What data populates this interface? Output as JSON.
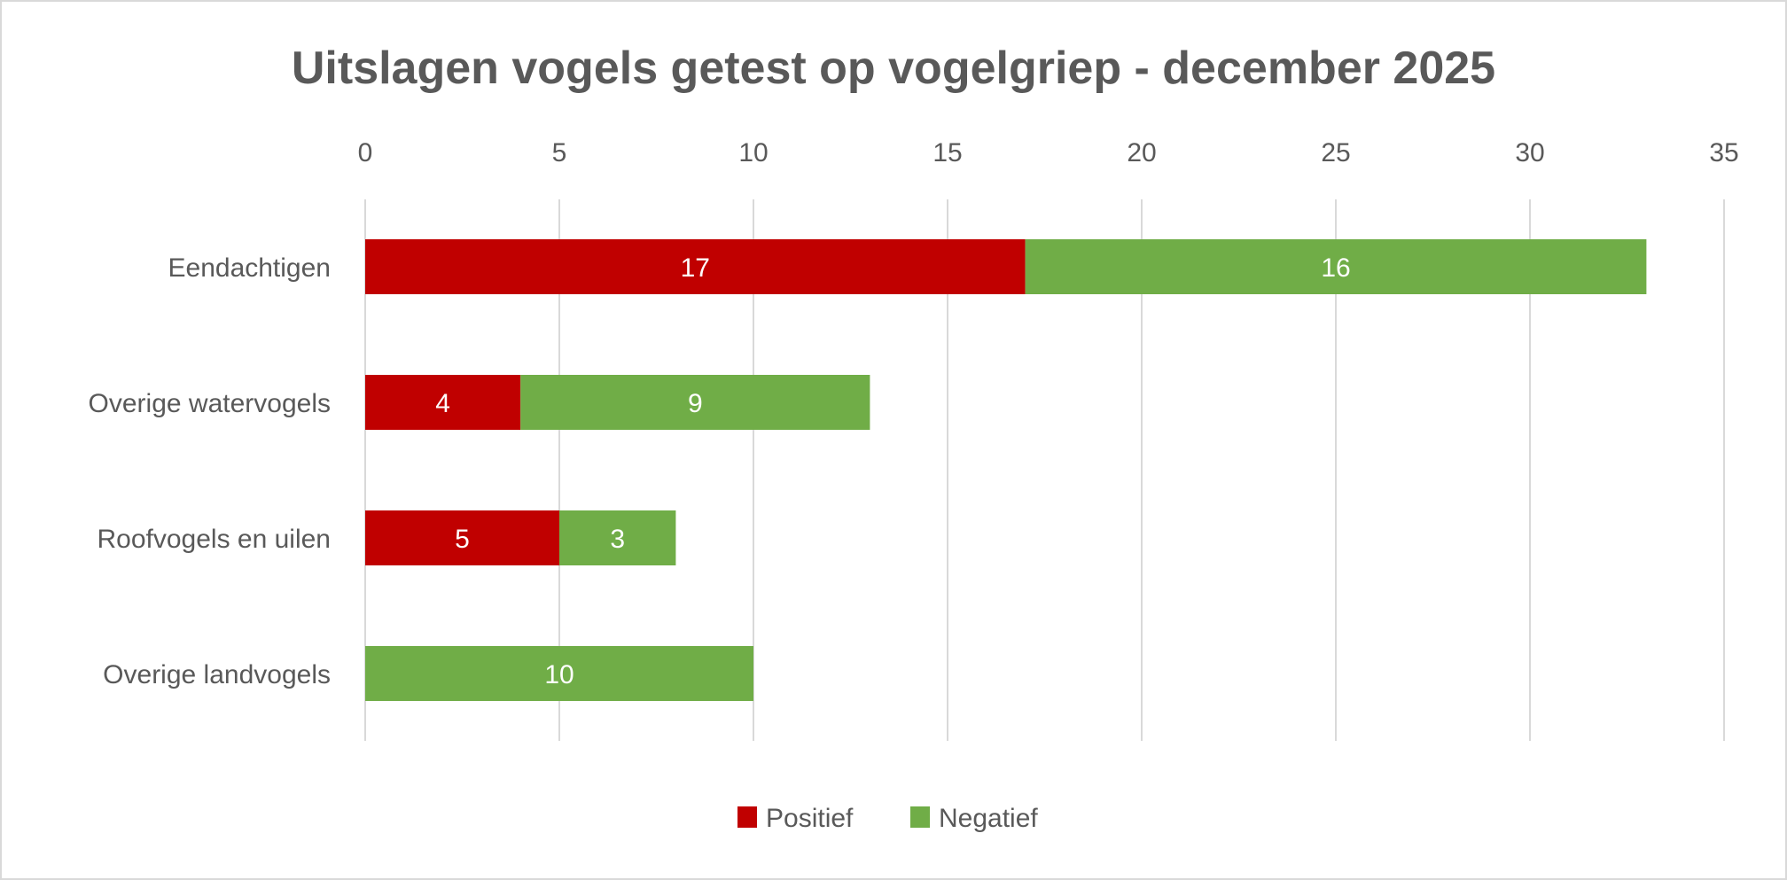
{
  "chart_data": {
    "type": "bar",
    "orientation": "horizontal",
    "stacked": true,
    "title": "Uitslagen vogels getest op vogelgriep - december 2025",
    "xlabel": "",
    "ylabel": "",
    "categories": [
      "Eendachtigen",
      "Overige watervogels",
      "Roofvogels en uilen",
      "Overige landvogels"
    ],
    "series": [
      {
        "name": "Positief",
        "color": "#C00000",
        "values": [
          17,
          4,
          5,
          0
        ]
      },
      {
        "name": "Negatief",
        "color": "#70AD47",
        "values": [
          16,
          9,
          3,
          10
        ]
      }
    ],
    "xlim": [
      0,
      35
    ],
    "xticks": [
      "0",
      "5",
      "10",
      "15",
      "20",
      "25",
      "30",
      "35"
    ],
    "grid": true,
    "axis_position": "top",
    "legend": {
      "position": "bottom",
      "entries": [
        "Positief",
        "Negatief"
      ]
    }
  }
}
